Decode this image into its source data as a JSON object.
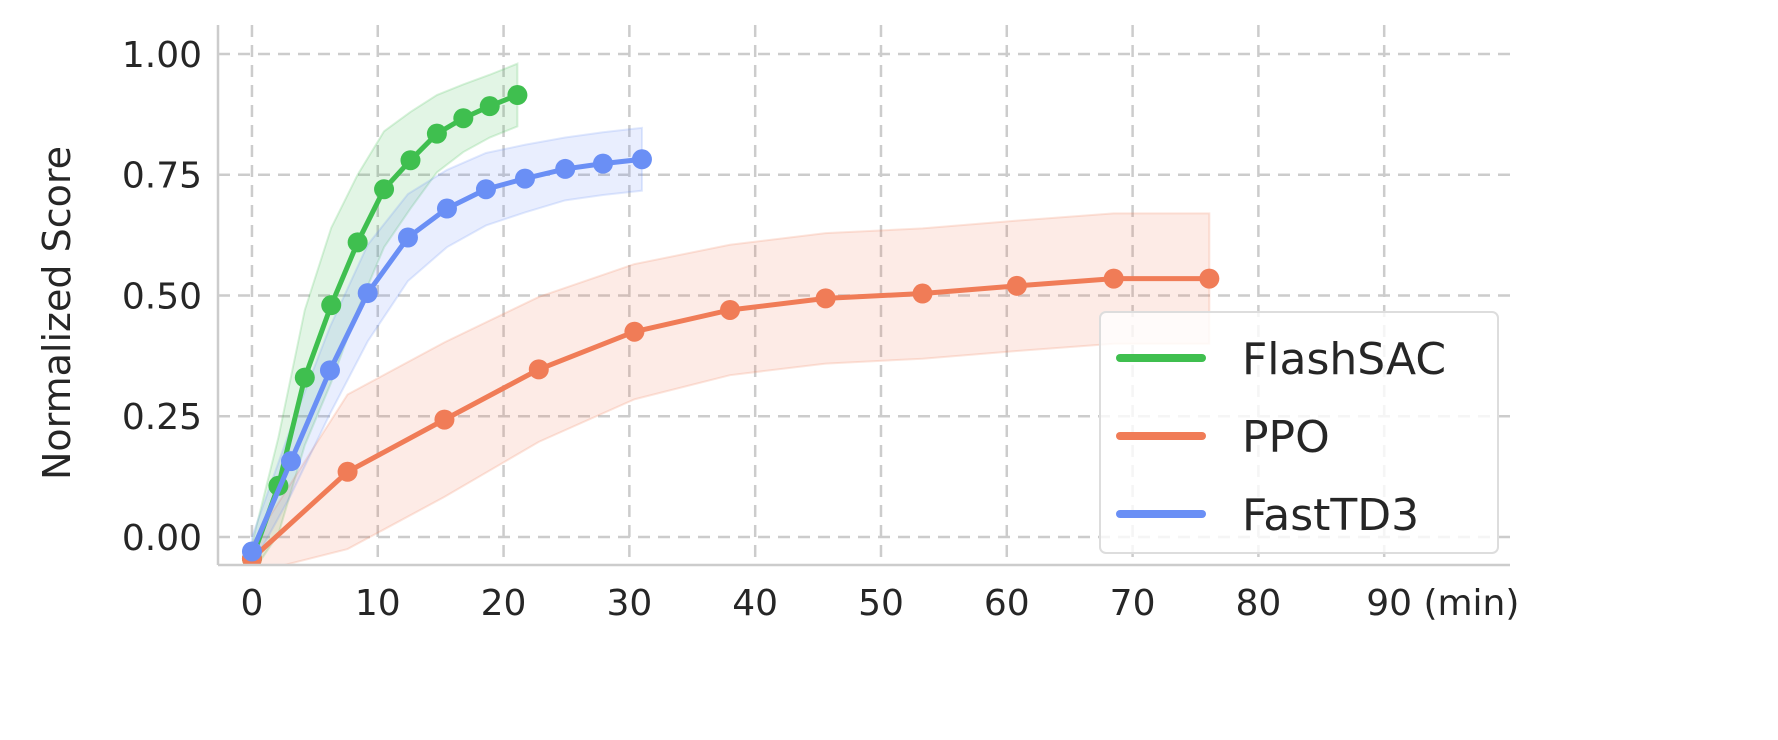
{
  "chart_data": {
    "type": "line",
    "xlabel": "",
    "x_unit_label": "90 (min)",
    "ylabel": "Normalized Score",
    "xlim": [
      -2.7,
      100
    ],
    "ylim": [
      -0.058,
      1.06
    ],
    "xticks": [
      0,
      10,
      20,
      30,
      40,
      50,
      60,
      70,
      80,
      90
    ],
    "xtick_labels": [
      "0",
      "10",
      "20",
      "30",
      "40",
      "50",
      "60",
      "70",
      "80",
      "90 (min)"
    ],
    "yticks": [
      0,
      0.25,
      0.5,
      0.75,
      1.0
    ],
    "ytick_labels": [
      "0.00",
      "0.25",
      "0.50",
      "0.75",
      "1.00"
    ],
    "grid": true,
    "legend": "bottom-right",
    "series": [
      {
        "name": "FlashSAC",
        "color": "#3fbf4f",
        "x": [
          0,
          2.1,
          4.2,
          6.3,
          8.4,
          10.5,
          12.6,
          14.7,
          16.8,
          18.9,
          21.1
        ],
        "y": [
          -0.045,
          0.106,
          0.33,
          0.48,
          0.61,
          0.72,
          0.78,
          0.835,
          0.867,
          0.892,
          0.915
        ],
        "band": [
          0.03,
          0.1,
          0.14,
          0.16,
          0.14,
          0.12,
          0.1,
          0.08,
          0.07,
          0.065,
          0.065
        ]
      },
      {
        "name": "PPO",
        "color": "#f07c57",
        "x": [
          0,
          7.6,
          15.3,
          22.8,
          30.4,
          38.0,
          45.6,
          53.3,
          60.8,
          68.5,
          76.1
        ],
        "y": [
          -0.045,
          0.135,
          0.243,
          0.347,
          0.425,
          0.47,
          0.494,
          0.504,
          0.52,
          0.535,
          0.535
        ],
        "band": [
          0.03,
          0.16,
          0.16,
          0.15,
          0.14,
          0.135,
          0.135,
          0.135,
          0.135,
          0.135,
          0.135
        ]
      },
      {
        "name": "FastTD3",
        "color": "#6a8ff5",
        "x": [
          0,
          3.1,
          6.2,
          9.2,
          12.4,
          15.5,
          18.6,
          21.7,
          24.9,
          27.9,
          31.0
        ],
        "y": [
          -0.03,
          0.157,
          0.345,
          0.505,
          0.62,
          0.68,
          0.72,
          0.742,
          0.762,
          0.773,
          0.782
        ],
        "band": [
          0.03,
          0.07,
          0.09,
          0.1,
          0.09,
          0.08,
          0.075,
          0.07,
          0.065,
          0.065,
          0.065
        ]
      }
    ]
  }
}
